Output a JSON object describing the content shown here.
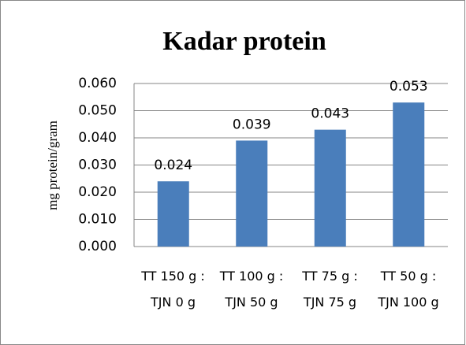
{
  "chart_data": {
    "type": "bar",
    "title": "Kadar protein",
    "y_label": "mg protein/gram",
    "categories": [
      "TT 150 g : TJN 0 g",
      "TT 100 g : TJN 50 g",
      "TT 75 g : TJN 75 g",
      "TT 50 g : TJN 100 g"
    ],
    "values": [
      0.024,
      0.039,
      0.043,
      0.053
    ],
    "color": "#4a7ebb",
    "ylim": [
      0,
      0.06
    ],
    "yticks": [
      {
        "value": 0,
        "label": "0.000"
      },
      {
        "value": 0.01,
        "label": "0.010"
      },
      {
        "value": 0.02,
        "label": "0.020"
      },
      {
        "value": 0.03,
        "label": "0.030"
      },
      {
        "value": 0.04,
        "label": "0.040"
      },
      {
        "value": 0.05,
        "label": "0.050"
      },
      {
        "value": 0.06,
        "label": "0.060"
      }
    ],
    "grid": true
  }
}
